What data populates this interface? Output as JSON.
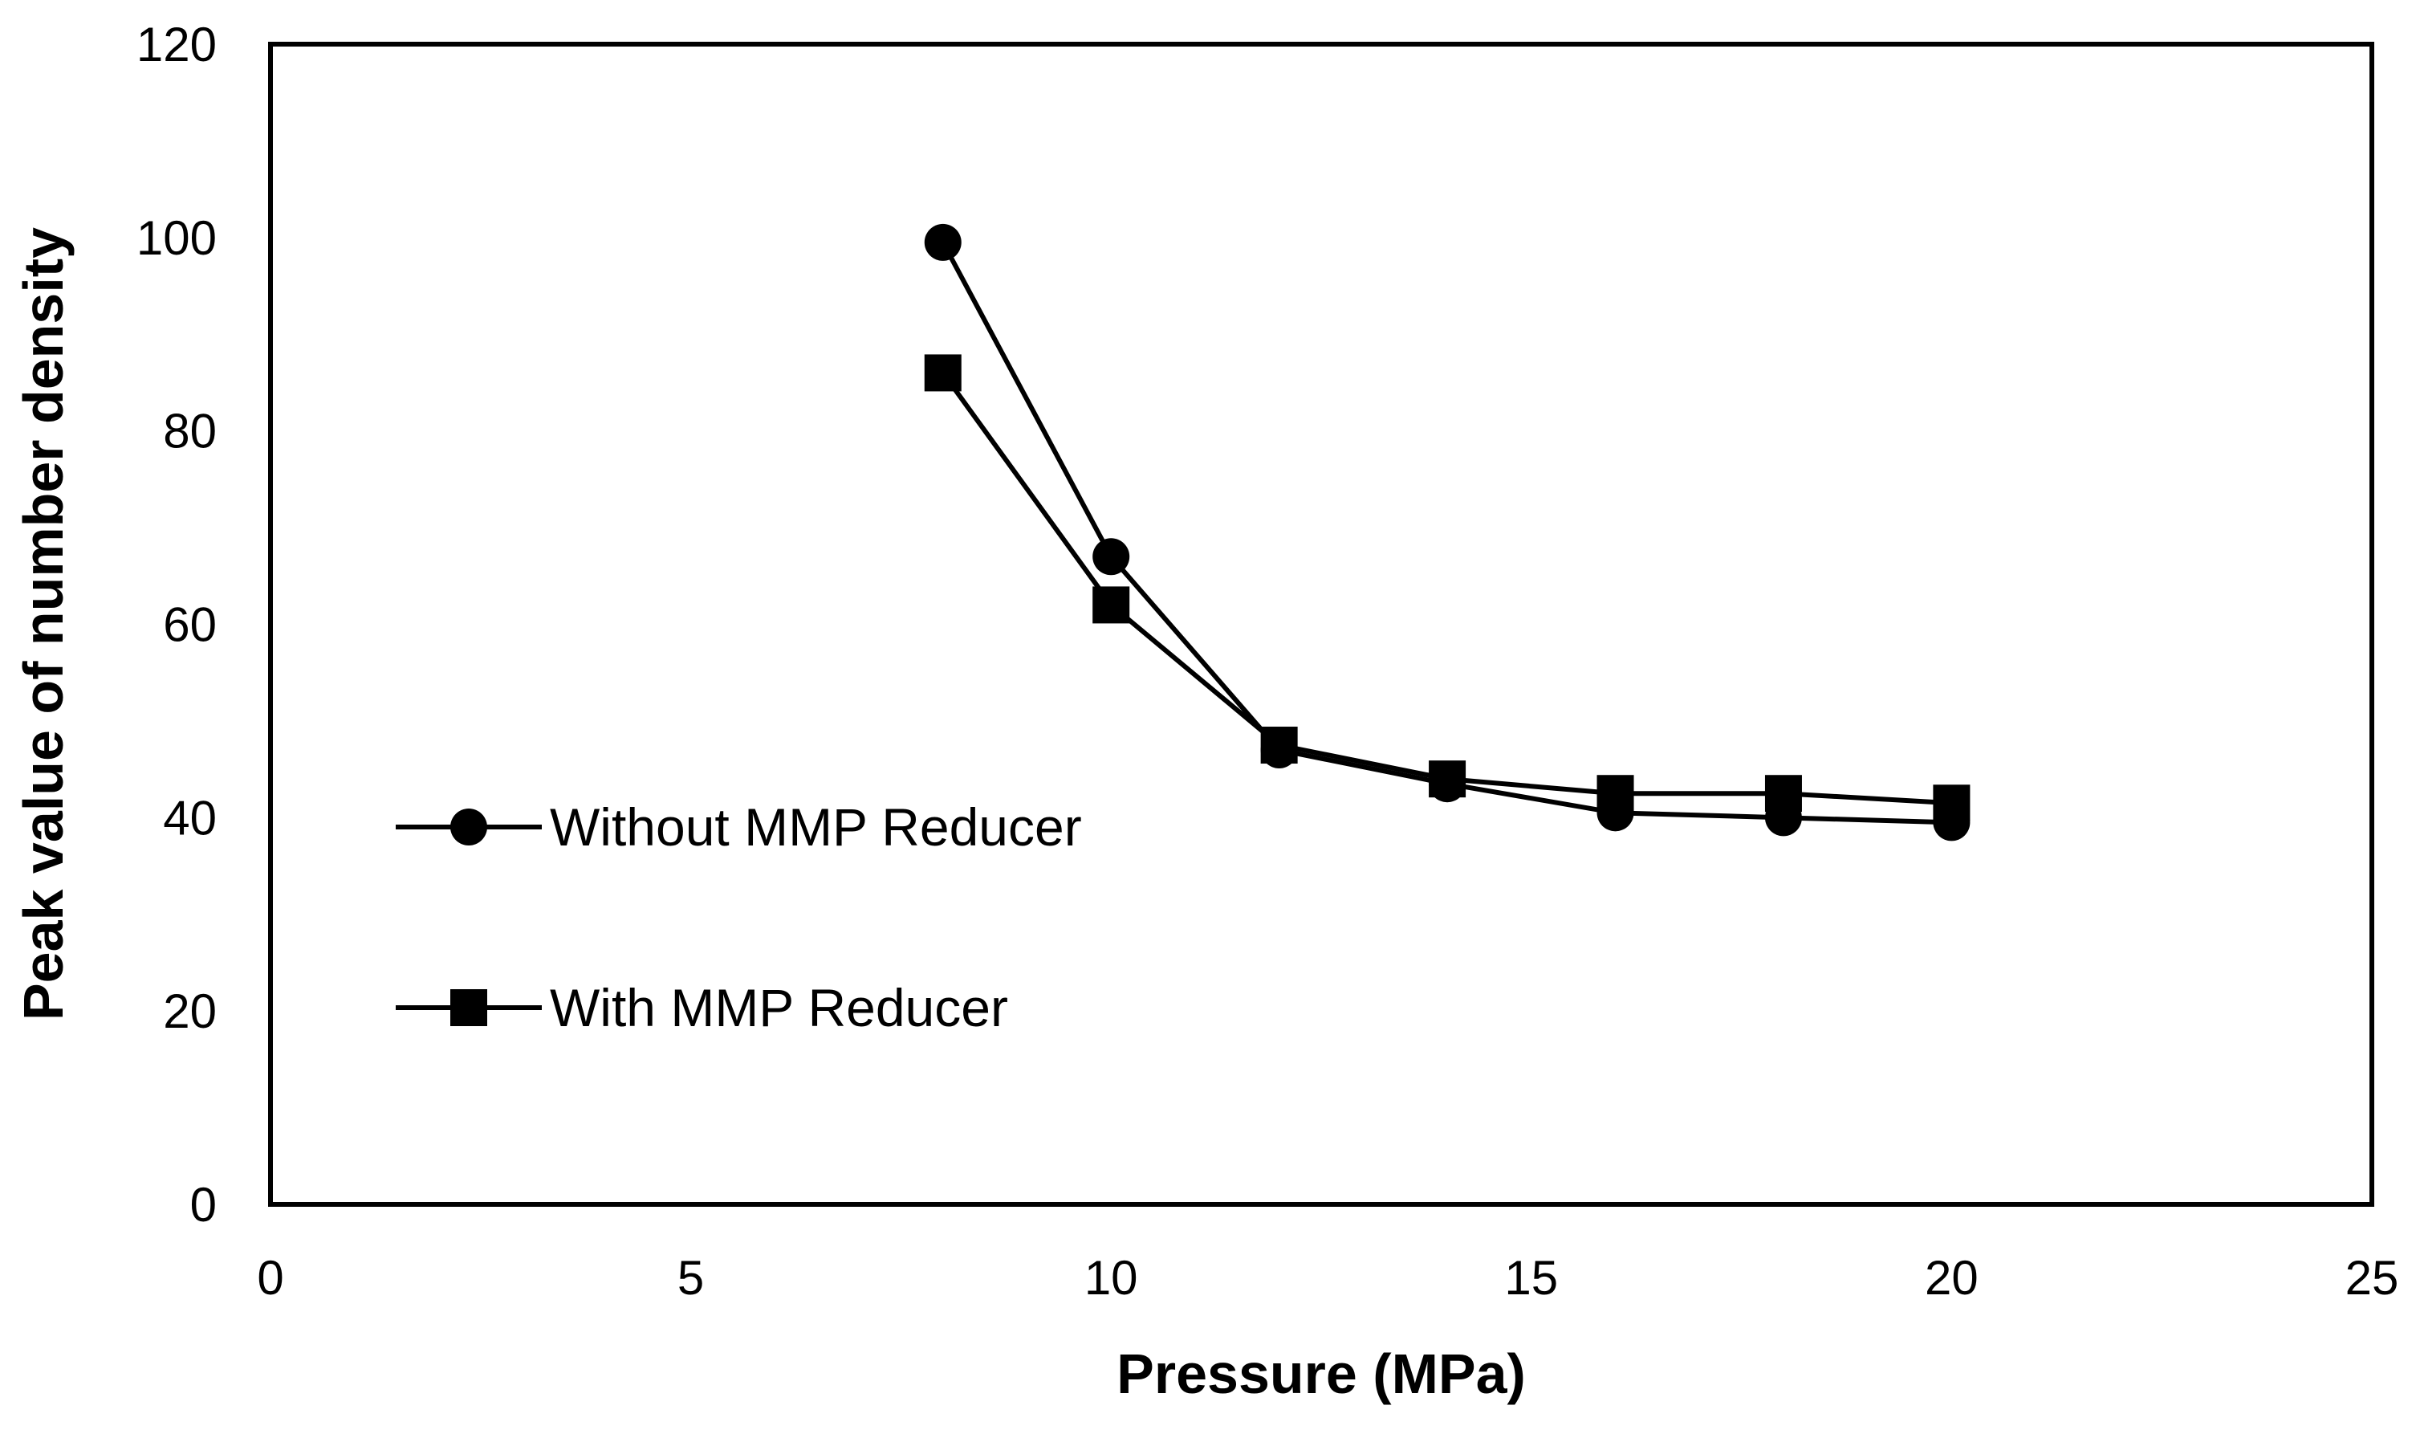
{
  "chart_data": {
    "type": "line",
    "title": "",
    "xlabel": "Pressure (MPa)",
    "ylabel": "Peak value of number density",
    "xlim": [
      0,
      25
    ],
    "ylim": [
      0,
      120
    ],
    "xticks": [
      0,
      5,
      10,
      15,
      20,
      25
    ],
    "yticks": [
      0,
      20,
      40,
      60,
      80,
      100,
      120
    ],
    "grid": false,
    "legend_position": "left",
    "x": [
      8,
      10,
      12,
      14,
      16,
      18,
      20
    ],
    "series": [
      {
        "name": "Without MMP Reducer",
        "marker": "circle",
        "color": "#000000",
        "values": [
          99.5,
          67,
          47,
          43.5,
          40.5,
          40,
          39.5
        ]
      },
      {
        "name": "With MMP Reducer",
        "marker": "square",
        "color": "#000000",
        "values": [
          86,
          62,
          47.5,
          44,
          42.5,
          42.5,
          41.5
        ]
      }
    ]
  }
}
